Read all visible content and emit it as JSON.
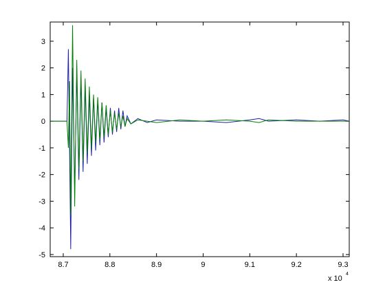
{
  "chart_data": {
    "type": "line",
    "x_multiplier": "x 10",
    "x_multiplier_exponent": "4",
    "x": [
      8.672,
      8.708,
      8.711,
      8.7135,
      8.716,
      8.72,
      8.7245,
      8.729,
      8.7335,
      8.738,
      8.7425,
      8.747,
      8.7515,
      8.756,
      8.7605,
      8.765,
      8.7695,
      8.774,
      8.7785,
      8.783,
      8.7875,
      8.792,
      8.7965,
      8.801,
      8.8055,
      8.81,
      8.8145,
      8.819,
      8.8235,
      8.828,
      8.8325,
      8.837,
      8.845,
      8.86,
      8.88,
      8.9,
      8.95,
      9.0,
      9.05,
      9.1,
      9.12,
      9.14,
      9.2,
      9.25,
      9.3,
      9.3133
    ],
    "series": [
      {
        "color": "#1f1fa0",
        "values": [
          0,
          0,
          2.7,
          -1.0,
          -4.8,
          2.0,
          -2.6,
          1.8,
          -2.2,
          1.6,
          -1.9,
          1.3,
          -1.6,
          1.0,
          -1.3,
          0.9,
          -1.1,
          0.8,
          -0.9,
          0.7,
          -0.8,
          0.5,
          -0.6,
          0.5,
          -0.5,
          0.4,
          -0.4,
          0.5,
          -0.3,
          0.4,
          -0.2,
          0.2,
          -0.1,
          0.1,
          -0.05,
          0.05,
          0,
          0,
          -0.05,
          0.05,
          0.1,
          0,
          0.05,
          0,
          0.05,
          0
        ]
      },
      {
        "color": "#008000",
        "values": [
          0,
          0,
          -1.0,
          1.5,
          -3.5,
          3.6,
          -3.2,
          2.3,
          -1.8,
          1.9,
          -1.5,
          1.6,
          -1.2,
          1.3,
          -1.0,
          1.0,
          -0.8,
          0.9,
          -0.7,
          0.7,
          -0.6,
          0.6,
          -0.5,
          0.4,
          -0.4,
          0.3,
          -0.3,
          0.3,
          -0.2,
          0.2,
          -0.2,
          0.1,
          -0.1,
          0.05,
          0,
          -0.05,
          0.05,
          0,
          0.05,
          0,
          -0.05,
          0.05,
          0,
          0,
          0,
          0
        ]
      }
    ],
    "xlim": [
      8.672,
      9.3133
    ],
    "ylim": [
      -5.08,
      3.72
    ],
    "xticks": [
      8.7,
      8.8,
      8.9,
      9,
      9.1,
      9.2,
      9.3
    ],
    "yticks": [
      -5,
      -4,
      -3,
      -2,
      -1,
      0,
      1,
      2,
      3
    ],
    "grid": false
  }
}
